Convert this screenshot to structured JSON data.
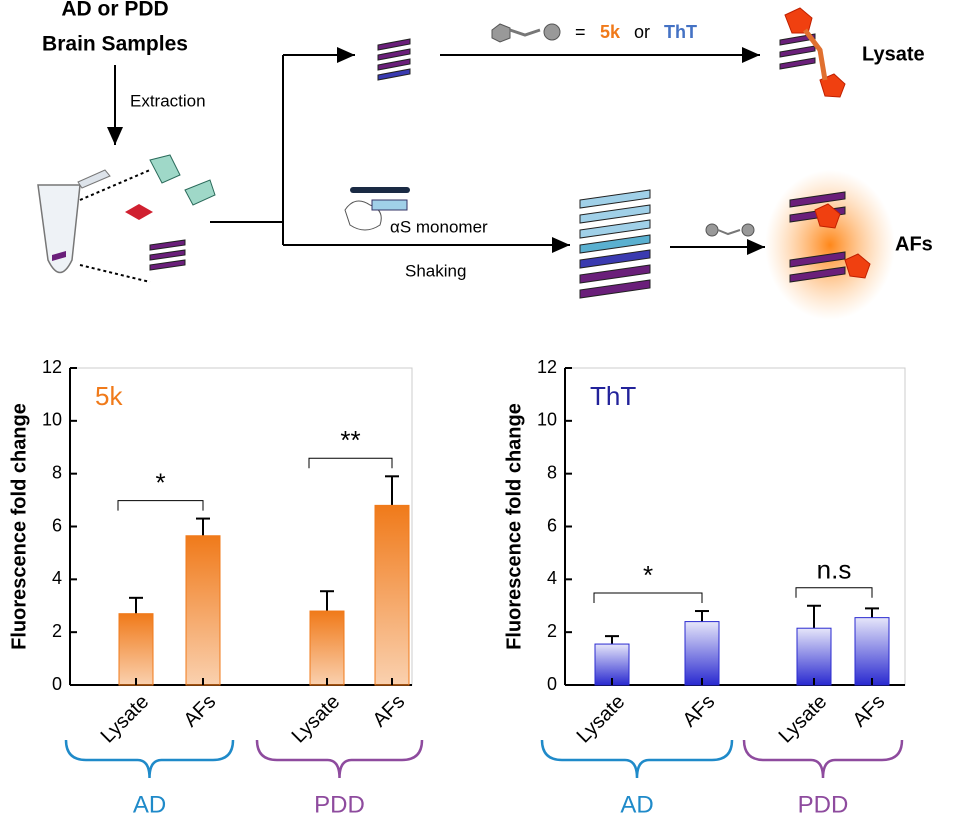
{
  "diagram": {
    "sample_title": [
      "AD or PDD",
      "Brain Samples"
    ],
    "extraction": "Extraction",
    "probe_eq": "=",
    "probe_5k": "5k",
    "probe_or": "or",
    "probe_tht": "ThT",
    "lysate": "Lysate",
    "monomer": "αS monomer",
    "shaking": "Shaking",
    "afs": "AFs"
  },
  "chart_data": [
    {
      "type": "bar",
      "label": "5k",
      "label_color": "#f07a1a",
      "ylabel": "Fluorescence fold change",
      "categories": [
        "Lysate",
        "AFs",
        "Lysate",
        "AFs"
      ],
      "values": [
        2.7,
        5.65,
        2.8,
        6.8
      ],
      "errors": [
        0.6,
        0.65,
        0.75,
        1.1
      ],
      "color": "#f07a1a",
      "ylim": [
        0,
        12
      ],
      "yticks": [
        0,
        2,
        4,
        6,
        8,
        10,
        12
      ],
      "groups": [
        {
          "name": "AD",
          "significance": "*",
          "color": "#1f8ac9"
        },
        {
          "name": "PDD",
          "significance": "**",
          "color": "#8e4b9e"
        }
      ]
    },
    {
      "type": "bar",
      "label": "ThT",
      "label_color": "#22229a",
      "ylabel": "Fluorescence fold change",
      "categories": [
        "Lysate",
        "AFs",
        "Lysate",
        "AFs"
      ],
      "values": [
        1.55,
        2.4,
        2.15,
        2.55
      ],
      "errors": [
        0.3,
        0.4,
        0.85,
        0.35
      ],
      "color": "#2a2ad0",
      "ylim": [
        0,
        12
      ],
      "yticks": [
        0,
        2,
        4,
        6,
        8,
        10,
        12
      ],
      "groups": [
        {
          "name": "AD",
          "significance": "*",
          "color": "#1f8ac9"
        },
        {
          "name": "PDD",
          "significance": "n.s",
          "color": "#8e4b9e"
        }
      ]
    }
  ]
}
